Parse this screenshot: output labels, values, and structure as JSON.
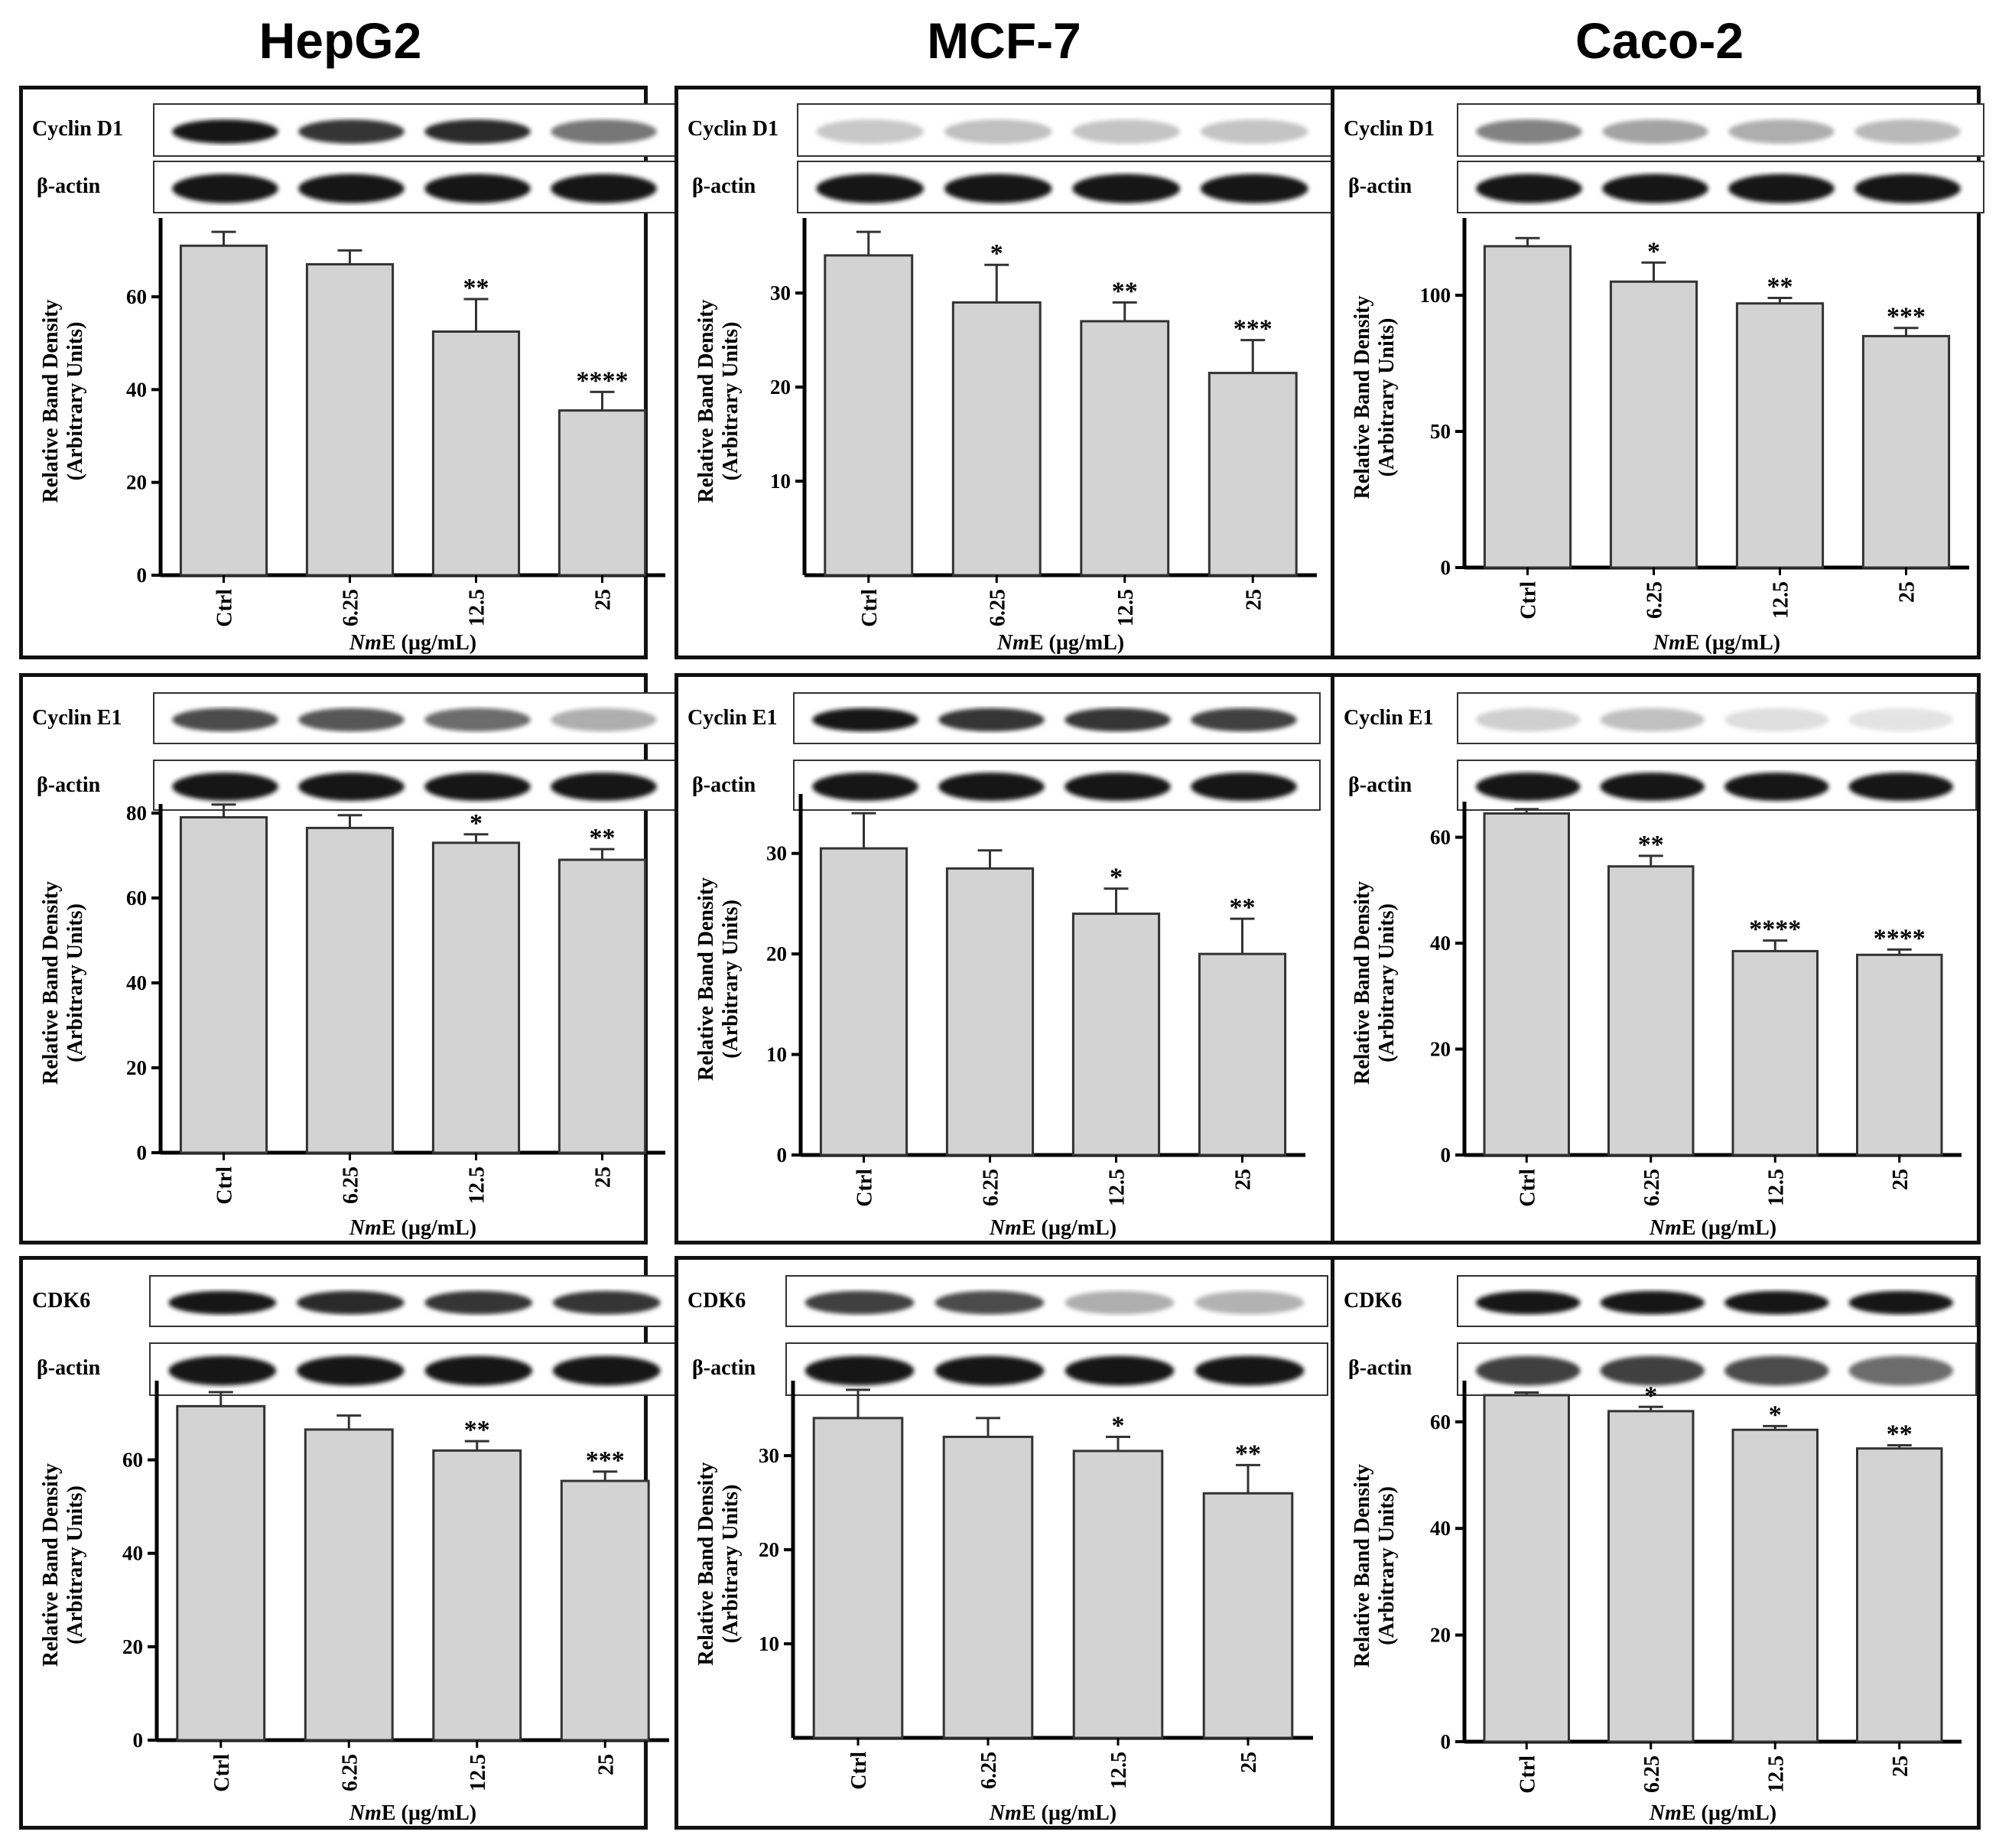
{
  "columns": [
    "HepG2",
    "MCF-7",
    "Caco-2"
  ],
  "loading_control": "β-actin",
  "xaxis_prefix": "Nm",
  "xaxis_suffix": "E (µg/mL)",
  "ylabel_line1": "Relative Band Density",
  "ylabel_line2": "(Arbitrary Units)",
  "chart_data": [
    {
      "type": "bar",
      "cell_line": "HepG2",
      "protein": "Cyclin D1",
      "categories": [
        "Ctrl",
        "6.25",
        "12.5",
        "25"
      ],
      "values": [
        71,
        67,
        52.5,
        35.5
      ],
      "errors": [
        3,
        3,
        7,
        4
      ],
      "significance": [
        "",
        "",
        "**",
        "****"
      ],
      "ylim": [
        0,
        75
      ],
      "yticks": [
        0,
        20,
        40,
        60
      ],
      "ylabel": "Relative Band Density (Arbitrary Units)",
      "xlabel": "NmE (µg/mL)"
    },
    {
      "type": "bar",
      "cell_line": "MCF-7",
      "protein": "Cyclin D1",
      "categories": [
        "Ctrl",
        "6.25",
        "12.5",
        "25"
      ],
      "values": [
        34,
        29,
        27,
        21.5
      ],
      "errors": [
        2.5,
        4,
        2,
        3.5
      ],
      "significance": [
        "",
        "*",
        "**",
        "***"
      ],
      "ylim": [
        0,
        37
      ],
      "yticks": [
        10,
        20,
        30
      ],
      "ylabel": "Relative Band Density (Arbitrary Units)",
      "xlabel": "NmE (µg/mL)"
    },
    {
      "type": "bar",
      "cell_line": "Caco-2",
      "protein": "Cyclin D1",
      "categories": [
        "Ctrl",
        "6.25",
        "12.5",
        "25"
      ],
      "values": [
        118,
        105,
        97,
        85
      ],
      "errors": [
        3,
        7,
        2,
        3
      ],
      "significance": [
        "",
        "*",
        "**",
        "***"
      ],
      "ylim": [
        0,
        125
      ],
      "yticks": [
        0,
        50,
        100
      ],
      "ylabel": "Relative Band Density (Arbitrary Units)",
      "xlabel": "NmE (µg/mL)"
    },
    {
      "type": "bar",
      "cell_line": "HepG2",
      "protein": "Cyclin E1",
      "categories": [
        "Ctrl",
        "6.25",
        "12.5",
        "25"
      ],
      "values": [
        79,
        76.5,
        73,
        69
      ],
      "errors": [
        3,
        3,
        2,
        2.5
      ],
      "significance": [
        "",
        "",
        "*",
        "**"
      ],
      "ylim": [
        0,
        80
      ],
      "yticks": [
        0,
        20,
        40,
        60,
        80
      ],
      "ylabel": "Relative Band Density (Arbitrary Units)",
      "xlabel": "NmE (µg/mL)"
    },
    {
      "type": "bar",
      "cell_line": "MCF-7",
      "protein": "Cyclin E1",
      "categories": [
        "Ctrl",
        "6.25",
        "12.5",
        "25"
      ],
      "values": [
        30.5,
        28.5,
        24,
        20
      ],
      "errors": [
        3.5,
        1.8,
        2.5,
        3.5
      ],
      "significance": [
        "",
        "",
        "*",
        "**"
      ],
      "ylim": [
        0,
        35
      ],
      "yticks": [
        0,
        10,
        20,
        30
      ],
      "ylabel": "Relative Band Density (Arbitrary Units)",
      "xlabel": "NmE (µg/mL)"
    },
    {
      "type": "bar",
      "cell_line": "Caco-2",
      "protein": "Cyclin E1",
      "categories": [
        "Ctrl",
        "6.25",
        "12.5",
        "25"
      ],
      "values": [
        64.5,
        54.5,
        38.5,
        37.8
      ],
      "errors": [
        0.8,
        2,
        2,
        1
      ],
      "significance": [
        "",
        "**",
        "****",
        "****"
      ],
      "ylim": [
        0,
        65
      ],
      "yticks": [
        0,
        20,
        40,
        60
      ],
      "ylabel": "Relative Band Density (Arbitrary Units)",
      "xlabel": "NmE (µg/mL)"
    },
    {
      "type": "bar",
      "cell_line": "HepG2",
      "protein": "CDK6",
      "categories": [
        "Ctrl",
        "6.25",
        "12.5",
        "25"
      ],
      "values": [
        71.5,
        66.5,
        62,
        55.5
      ],
      "errors": [
        3,
        3,
        2,
        2
      ],
      "significance": [
        "",
        "",
        "**",
        "***"
      ],
      "ylim": [
        0,
        75
      ],
      "yticks": [
        0,
        20,
        40,
        60
      ],
      "ylabel": "Relative Band Density (Arbitrary Units)",
      "xlabel": "NmE (µg/mL)"
    },
    {
      "type": "bar",
      "cell_line": "MCF-7",
      "protein": "CDK6",
      "categories": [
        "Ctrl",
        "6.25",
        "12.5",
        "25"
      ],
      "values": [
        34,
        32,
        30.5,
        26
      ],
      "errors": [
        3,
        2,
        1.5,
        3
      ],
      "significance": [
        "",
        "",
        "*",
        "**"
      ],
      "ylim": [
        0,
        37
      ],
      "yticks": [
        10,
        20,
        30
      ],
      "ylabel": "Relative Band Density (Arbitrary Units)",
      "xlabel": "NmE (µg/mL)"
    },
    {
      "type": "bar",
      "cell_line": "Caco-2",
      "protein": "CDK6",
      "categories": [
        "Ctrl",
        "6.25",
        "12.5",
        "25"
      ],
      "values": [
        65,
        62,
        58.5,
        55
      ],
      "errors": [
        0.5,
        0.8,
        0.7,
        0.6
      ],
      "significance": [
        "",
        "*",
        "*",
        "**"
      ],
      "ylim": [
        0,
        66
      ],
      "yticks": [
        0,
        20,
        40,
        60
      ],
      "ylabel": "Relative Band Density (Arbitrary Units)",
      "xlabel": "NmE (µg/mL)"
    }
  ]
}
